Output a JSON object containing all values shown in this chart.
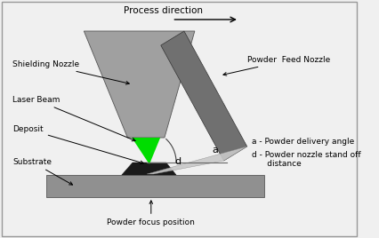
{
  "bg_color": "#f0f0f0",
  "border_color": "#999999",
  "shielding_nozzle_color": "#a0a0a0",
  "powder_feed_nozzle_color": "#707070",
  "substrate_color": "#909090",
  "laser_beam_color": "#00dd00",
  "powder_stream_color": "#c8c8c8",
  "deposit_dark_color": "#1a1a1a",
  "text_color": "#000000",
  "labels": {
    "process_direction": "Process direction",
    "shielding_nozzle": "Shielding Nozzle",
    "laser_beam": "Laser Beam",
    "deposit": "Deposit",
    "substrate": "Substrate",
    "powder_feed_nozzle": "Powder  Feed Nozzle",
    "powder_focus": "Powder focus position",
    "a_label": "a",
    "d_label": "d",
    "legend_a": "a - Powder delivery angle",
    "legend_d": "d - Powder nozzle stand off\n      distance"
  }
}
